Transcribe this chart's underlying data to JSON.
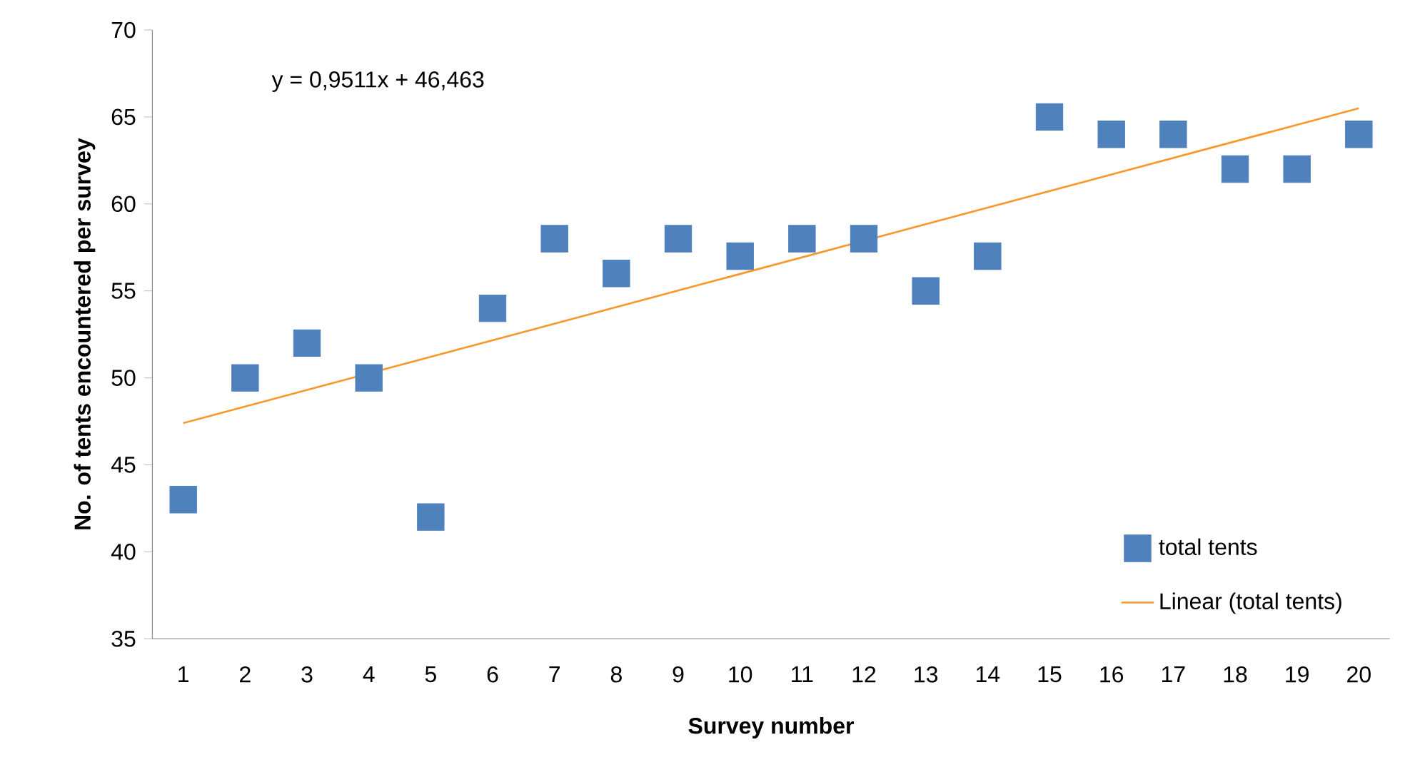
{
  "chart_data": {
    "type": "scatter",
    "xlabel": "Survey number",
    "ylabel": "No. of tents encountered per survey",
    "xlim": [
      0.5,
      20.5
    ],
    "xticks": [
      1,
      2,
      3,
      4,
      5,
      6,
      7,
      8,
      9,
      10,
      11,
      12,
      13,
      14,
      15,
      16,
      17,
      18,
      19,
      20
    ],
    "ylim": [
      35,
      70
    ],
    "yticks": [
      35,
      40,
      45,
      50,
      55,
      60,
      65,
      70
    ],
    "legend": "bottom right",
    "annotations": [
      "y = 0,9511x + 46,463"
    ],
    "series": [
      {
        "name": "total tents",
        "marker": "square",
        "color": "#4f81bd",
        "x": [
          1,
          2,
          3,
          4,
          5,
          6,
          7,
          8,
          9,
          10,
          11,
          12,
          13,
          14,
          15,
          16,
          17,
          18,
          19,
          20
        ],
        "values": [
          43,
          50,
          52,
          50,
          42,
          54,
          58,
          56,
          58,
          57,
          58,
          58,
          55,
          57,
          65,
          64,
          64,
          62,
          62,
          64
        ]
      },
      {
        "name": "Linear (total tents)",
        "type": "line",
        "marker": "none",
        "line_style": "solid",
        "color": "#f79a2e",
        "x": [
          1,
          20
        ],
        "values": [
          47.4,
          65.5
        ]
      }
    ]
  }
}
